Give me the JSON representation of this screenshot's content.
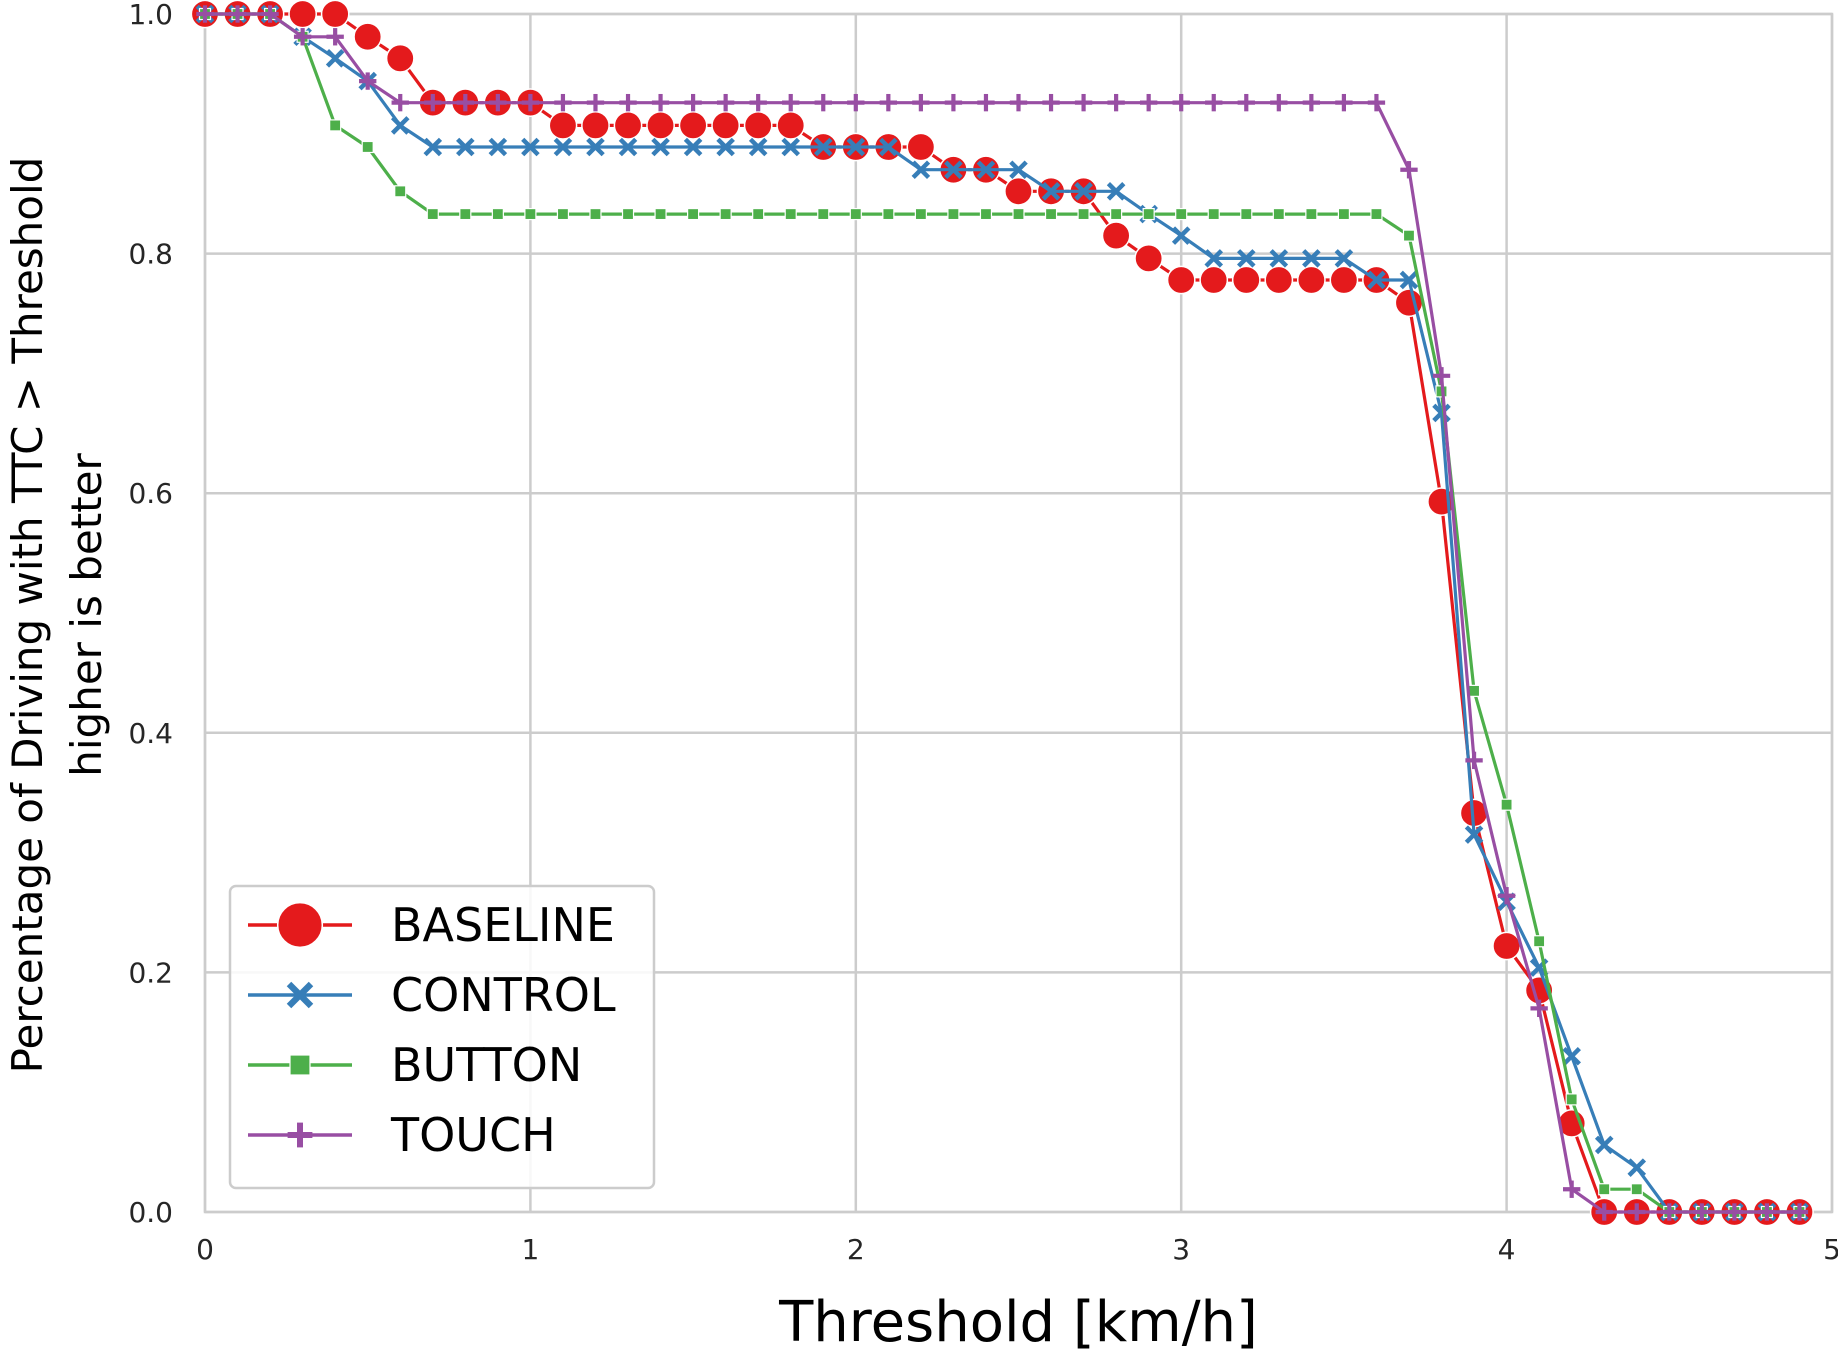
{
  "chart_data": {
    "type": "line",
    "xlabel": "Threshold [km/h]",
    "ylabel_lines": [
      "Percentage of Driving with TTC > Threshold",
      "higher is better"
    ],
    "xlim": [
      0,
      5
    ],
    "ylim": [
      0,
      1
    ],
    "x_ticks": [
      0,
      1,
      2,
      3,
      4,
      5
    ],
    "x_tick_labels": [
      "0",
      "1",
      "2",
      "3",
      "4",
      "5"
    ],
    "y_ticks": [
      0,
      0.2,
      0.4,
      0.6,
      0.8,
      1.0
    ],
    "y_tick_labels": [
      "0.0",
      "0.2",
      "0.4",
      "0.6",
      "0.8",
      "1.0"
    ],
    "grid": true,
    "legend_position": "lower-left",
    "x": [
      0.0,
      0.1,
      0.2,
      0.3,
      0.4,
      0.5,
      0.6,
      0.7,
      0.8,
      0.9,
      1.0,
      1.1,
      1.2,
      1.3,
      1.4,
      1.5,
      1.6,
      1.7,
      1.8,
      1.9,
      2.0,
      2.1,
      2.2,
      2.3,
      2.4,
      2.5,
      2.6,
      2.7,
      2.8,
      2.9,
      3.0,
      3.1,
      3.2,
      3.3,
      3.4,
      3.5,
      3.6,
      3.7,
      3.8,
      3.9,
      4.0,
      4.1,
      4.2,
      4.3,
      4.4,
      4.5,
      4.6,
      4.7,
      4.8,
      4.9
    ],
    "series": [
      {
        "name": "BASELINE",
        "color": "#e41a1c",
        "marker": "circle",
        "values": [
          1.0,
          1.0,
          1.0,
          1.0,
          1.0,
          0.981,
          0.963,
          0.926,
          0.926,
          0.926,
          0.926,
          0.907,
          0.907,
          0.907,
          0.907,
          0.907,
          0.907,
          0.907,
          0.907,
          0.889,
          0.889,
          0.889,
          0.889,
          0.87,
          0.87,
          0.852,
          0.852,
          0.852,
          0.815,
          0.796,
          0.778,
          0.778,
          0.778,
          0.778,
          0.778,
          0.778,
          0.778,
          0.759,
          0.593,
          0.333,
          0.222,
          0.185,
          0.074,
          0.0,
          0.0,
          0.0,
          0.0,
          0.0,
          0.0,
          0.0
        ]
      },
      {
        "name": "CONTROL",
        "color": "#377eb8",
        "marker": "x",
        "values": [
          1.0,
          1.0,
          1.0,
          0.981,
          0.963,
          0.944,
          0.907,
          0.889,
          0.889,
          0.889,
          0.889,
          0.889,
          0.889,
          0.889,
          0.889,
          0.889,
          0.889,
          0.889,
          0.889,
          0.889,
          0.889,
          0.889,
          0.87,
          0.87,
          0.87,
          0.87,
          0.852,
          0.852,
          0.852,
          0.833,
          0.815,
          0.796,
          0.796,
          0.796,
          0.796,
          0.796,
          0.778,
          0.778,
          0.667,
          0.315,
          0.259,
          0.204,
          0.13,
          0.056,
          0.037,
          0.0,
          0.0,
          0.0,
          0.0,
          0.0
        ]
      },
      {
        "name": "BUTTON",
        "color": "#4daf4a",
        "marker": "square",
        "values": [
          1.0,
          1.0,
          1.0,
          0.981,
          0.907,
          0.889,
          0.852,
          0.833,
          0.833,
          0.833,
          0.833,
          0.833,
          0.833,
          0.833,
          0.833,
          0.833,
          0.833,
          0.833,
          0.833,
          0.833,
          0.833,
          0.833,
          0.833,
          0.833,
          0.833,
          0.833,
          0.833,
          0.833,
          0.833,
          0.833,
          0.833,
          0.833,
          0.833,
          0.833,
          0.833,
          0.833,
          0.833,
          0.815,
          0.685,
          0.435,
          0.34,
          0.226,
          0.094,
          0.019,
          0.019,
          0.0,
          0.0,
          0.0,
          0.0,
          0.0
        ]
      },
      {
        "name": "TOUCH",
        "color": "#984ea3",
        "marker": "plus",
        "values": [
          1.0,
          1.0,
          1.0,
          0.981,
          0.981,
          0.944,
          0.926,
          0.926,
          0.926,
          0.926,
          0.926,
          0.926,
          0.926,
          0.926,
          0.926,
          0.926,
          0.926,
          0.926,
          0.926,
          0.926,
          0.926,
          0.926,
          0.926,
          0.926,
          0.926,
          0.926,
          0.926,
          0.926,
          0.926,
          0.926,
          0.926,
          0.926,
          0.926,
          0.926,
          0.926,
          0.926,
          0.926,
          0.87,
          0.698,
          0.377,
          0.264,
          0.17,
          0.019,
          0.0,
          0.0,
          0.0,
          0.0,
          0.0,
          0.0,
          0.0
        ]
      }
    ]
  }
}
